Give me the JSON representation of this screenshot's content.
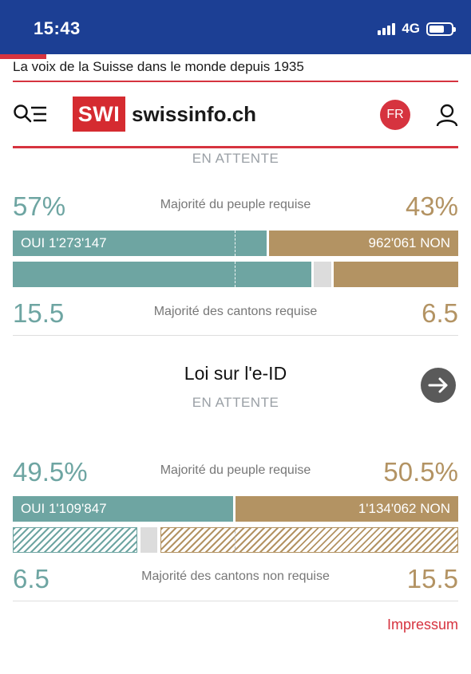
{
  "status_bar": {
    "time": "15:43",
    "network": "4G"
  },
  "tagline": "La voix de la Suisse dans le monde depuis 1935",
  "header": {
    "logo_box": "SWI",
    "logo_text": "swissinfo.ch",
    "language": "FR"
  },
  "vote1": {
    "status": "EN ATTENTE",
    "yes_percent": "57%",
    "no_percent": "43%",
    "people_label": "Majorité du peuple requise",
    "yes_votes": "OUI 1'273'147",
    "no_votes": "962'061 NON",
    "yes_share": 0.57,
    "cantons_yes": "15.5",
    "cantons_no": "6.5",
    "cantons_label": "Majorité des cantons requise"
  },
  "vote2": {
    "title": "Loi sur l'e-ID",
    "status": "EN ATTENTE",
    "yes_percent": "49.5%",
    "no_percent": "50.5%",
    "people_label": "Majorité du peuple requise",
    "yes_votes": "OUI 1'109'847",
    "no_votes": "1'134'062 NON",
    "yes_share": 0.495,
    "cantons_yes": "6.5",
    "cantons_no": "15.5",
    "cantons_label": "Majorité des cantons non requise"
  },
  "footer": {
    "impressum": "Impressum"
  },
  "colors": {
    "brand_red": "#d52b30",
    "status_blue": "#1c3f94",
    "yes": "#6ea5a2",
    "no": "#b39363"
  },
  "icons": {
    "menu_search": "search-menu-icon",
    "user": "user-icon",
    "arrow": "arrow-right-icon"
  }
}
